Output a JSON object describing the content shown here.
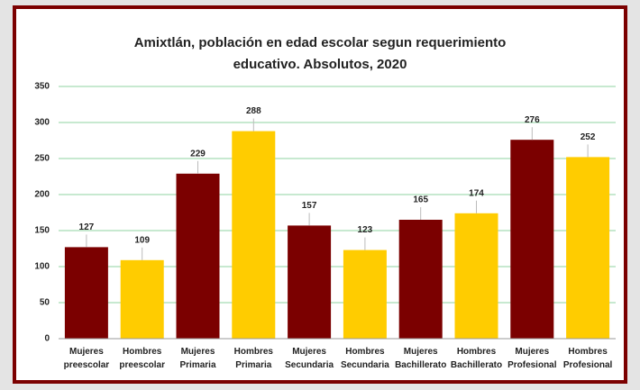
{
  "chart_data": {
    "type": "bar",
    "title": [
      "Amixtlán, población en edad escolar segun requerimiento",
      "educativo. Absolutos, 2020"
    ],
    "categories": [
      "Mujeres preescolar",
      "Hombres preescolar",
      "Mujeres Primaria",
      "Hombres Primaria",
      "Mujeres Secundaria",
      "Hombres Secundaria",
      "Mujeres Bachillerato",
      "Hombres Bachillerato",
      "Mujeres Profesional",
      "Hombres Profesional"
    ],
    "values": [
      127,
      109,
      229,
      288,
      157,
      123,
      165,
      174,
      276,
      252
    ],
    "colors": [
      "#7b0000",
      "#ffcc00",
      "#7b0000",
      "#ffcc00",
      "#7b0000",
      "#ffcc00",
      "#7b0000",
      "#ffcc00",
      "#7b0000",
      "#ffcc00"
    ],
    "ylim": [
      0,
      350
    ],
    "yticks": [
      0,
      50,
      100,
      150,
      200,
      250,
      300,
      350
    ],
    "grid": true
  }
}
